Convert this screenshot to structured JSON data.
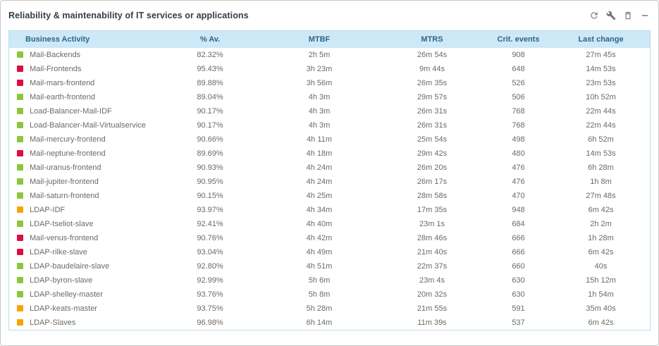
{
  "panel": {
    "title": "Reliability & maintenability of IT services or applications"
  },
  "toolbar": {
    "icons": [
      "refresh-icon",
      "wrench-icon",
      "trash-icon",
      "minimize-icon"
    ]
  },
  "table": {
    "columns": [
      "Business Activity",
      "% Av.",
      "MTBF",
      "MTRS",
      "Crit. events",
      "Last change"
    ],
    "rows": [
      {
        "status": "green",
        "name": "Mail-Backends",
        "availability": "82.32%",
        "mtbf": "2h 5m",
        "mtrs": "26m 54s",
        "crit_events": "908",
        "last_change": "27m 45s"
      },
      {
        "status": "red",
        "name": "Mail-Frontends",
        "availability": "95.43%",
        "mtbf": "3h 23m",
        "mtrs": "9m 44s",
        "crit_events": "648",
        "last_change": "14m 53s"
      },
      {
        "status": "red",
        "name": "Mail-mars-frontend",
        "availability": "89.88%",
        "mtbf": "3h 56m",
        "mtrs": "26m 35s",
        "crit_events": "526",
        "last_change": "23m 53s"
      },
      {
        "status": "green",
        "name": "Mail-earth-frontend",
        "availability": "89.04%",
        "mtbf": "4h 3m",
        "mtrs": "29m 57s",
        "crit_events": "506",
        "last_change": "10h 52m"
      },
      {
        "status": "green",
        "name": "Load-Balancer-Mail-IDF",
        "availability": "90.17%",
        "mtbf": "4h 3m",
        "mtrs": "26m 31s",
        "crit_events": "768",
        "last_change": "22m 44s"
      },
      {
        "status": "green",
        "name": "Load-Balancer-Mail-Virtualservice",
        "availability": "90.17%",
        "mtbf": "4h 3m",
        "mtrs": "26m 31s",
        "crit_events": "768",
        "last_change": "22m 44s"
      },
      {
        "status": "green",
        "name": "Mail-mercury-frontend",
        "availability": "90.66%",
        "mtbf": "4h 11m",
        "mtrs": "25m 54s",
        "crit_events": "498",
        "last_change": "6h 52m"
      },
      {
        "status": "red",
        "name": "Mail-neptune-frontend",
        "availability": "89.69%",
        "mtbf": "4h 18m",
        "mtrs": "29m 42s",
        "crit_events": "480",
        "last_change": "14m 53s"
      },
      {
        "status": "green",
        "name": "Mail-uranus-frontend",
        "availability": "90.93%",
        "mtbf": "4h 24m",
        "mtrs": "26m 20s",
        "crit_events": "476",
        "last_change": "6h 28m"
      },
      {
        "status": "green",
        "name": "Mail-jupiter-frontend",
        "availability": "90.95%",
        "mtbf": "4h 24m",
        "mtrs": "26m 17s",
        "crit_events": "476",
        "last_change": "1h 8m"
      },
      {
        "status": "green",
        "name": "Mail-saturn-frontend",
        "availability": "90.15%",
        "mtbf": "4h 25m",
        "mtrs": "28m 58s",
        "crit_events": "470",
        "last_change": "27m 48s"
      },
      {
        "status": "orange",
        "name": "LDAP-IDF",
        "availability": "93.97%",
        "mtbf": "4h 34m",
        "mtrs": "17m 35s",
        "crit_events": "948",
        "last_change": "6m 42s"
      },
      {
        "status": "green",
        "name": "LDAP-tseliot-slave",
        "availability": "92.41%",
        "mtbf": "4h 40m",
        "mtrs": "23m 1s",
        "crit_events": "684",
        "last_change": "2h 2m"
      },
      {
        "status": "red",
        "name": "Mail-venus-frontend",
        "availability": "90.76%",
        "mtbf": "4h 42m",
        "mtrs": "28m 46s",
        "crit_events": "666",
        "last_change": "1h 28m"
      },
      {
        "status": "red",
        "name": "LDAP-rilke-slave",
        "availability": "93.04%",
        "mtbf": "4h 49m",
        "mtrs": "21m 40s",
        "crit_events": "666",
        "last_change": "6m 42s"
      },
      {
        "status": "green",
        "name": "LDAP-baudelaire-slave",
        "availability": "92.80%",
        "mtbf": "4h 51m",
        "mtrs": "22m 37s",
        "crit_events": "660",
        "last_change": "40s"
      },
      {
        "status": "green",
        "name": "LDAP-byron-slave",
        "availability": "92.99%",
        "mtbf": "5h 6m",
        "mtrs": "23m 4s",
        "crit_events": "630",
        "last_change": "15h 12m"
      },
      {
        "status": "green",
        "name": "LDAP-shelley-master",
        "availability": "93.76%",
        "mtbf": "5h 8m",
        "mtrs": "20m 32s",
        "crit_events": "630",
        "last_change": "1h 54m"
      },
      {
        "status": "orange",
        "name": "LDAP-keats-master",
        "availability": "93.75%",
        "mtbf": "5h 28m",
        "mtrs": "21m 55s",
        "crit_events": "591",
        "last_change": "35m 40s"
      },
      {
        "status": "orange",
        "name": "LDAP-Slaves",
        "availability": "96.98%",
        "mtbf": "6h 14m",
        "mtrs": "11m 39s",
        "crit_events": "537",
        "last_change": "6m 42s"
      }
    ]
  },
  "colors": {
    "green": "#8CC63F",
    "red": "#DC0D45",
    "orange": "#F7A400",
    "header_bg": "#CDE9F8",
    "header_text": "#2F6585",
    "row_text": "#6D6A64",
    "title_text": "#333D47",
    "panel_border": "#C8C8C8",
    "table_border": "#BADCEE",
    "icon": "#7D776D"
  }
}
